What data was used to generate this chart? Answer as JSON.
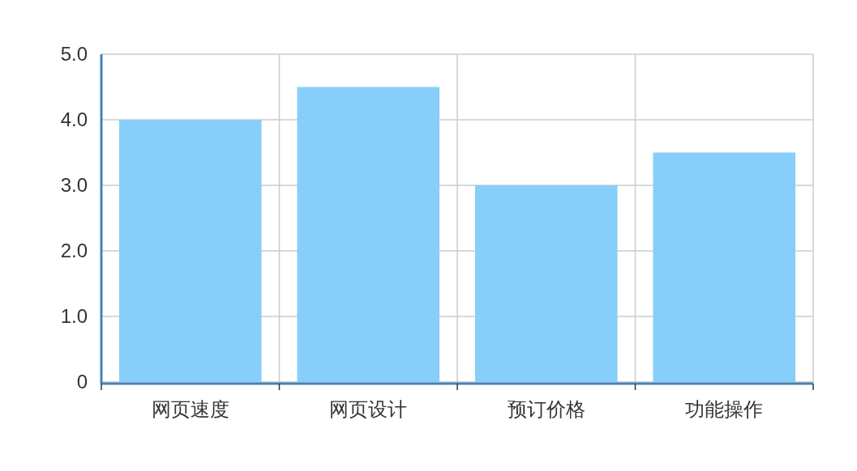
{
  "chart_data": {
    "type": "bar",
    "categories": [
      "网页速度",
      "网页设计",
      "预订价格",
      "功能操作"
    ],
    "values": [
      4.0,
      4.5,
      3.0,
      3.5
    ],
    "color": "#87cefa",
    "ylim": [
      0,
      5
    ],
    "yticks": [
      0,
      {
        "value": 1,
        "label": "1.0"
      },
      {
        "value": 2,
        "label": "2.0"
      },
      {
        "value": 3,
        "label": "3.0"
      },
      {
        "value": 4,
        "label": "4.0"
      },
      {
        "value": 5,
        "label": "5.0"
      }
    ],
    "grid": true
  }
}
